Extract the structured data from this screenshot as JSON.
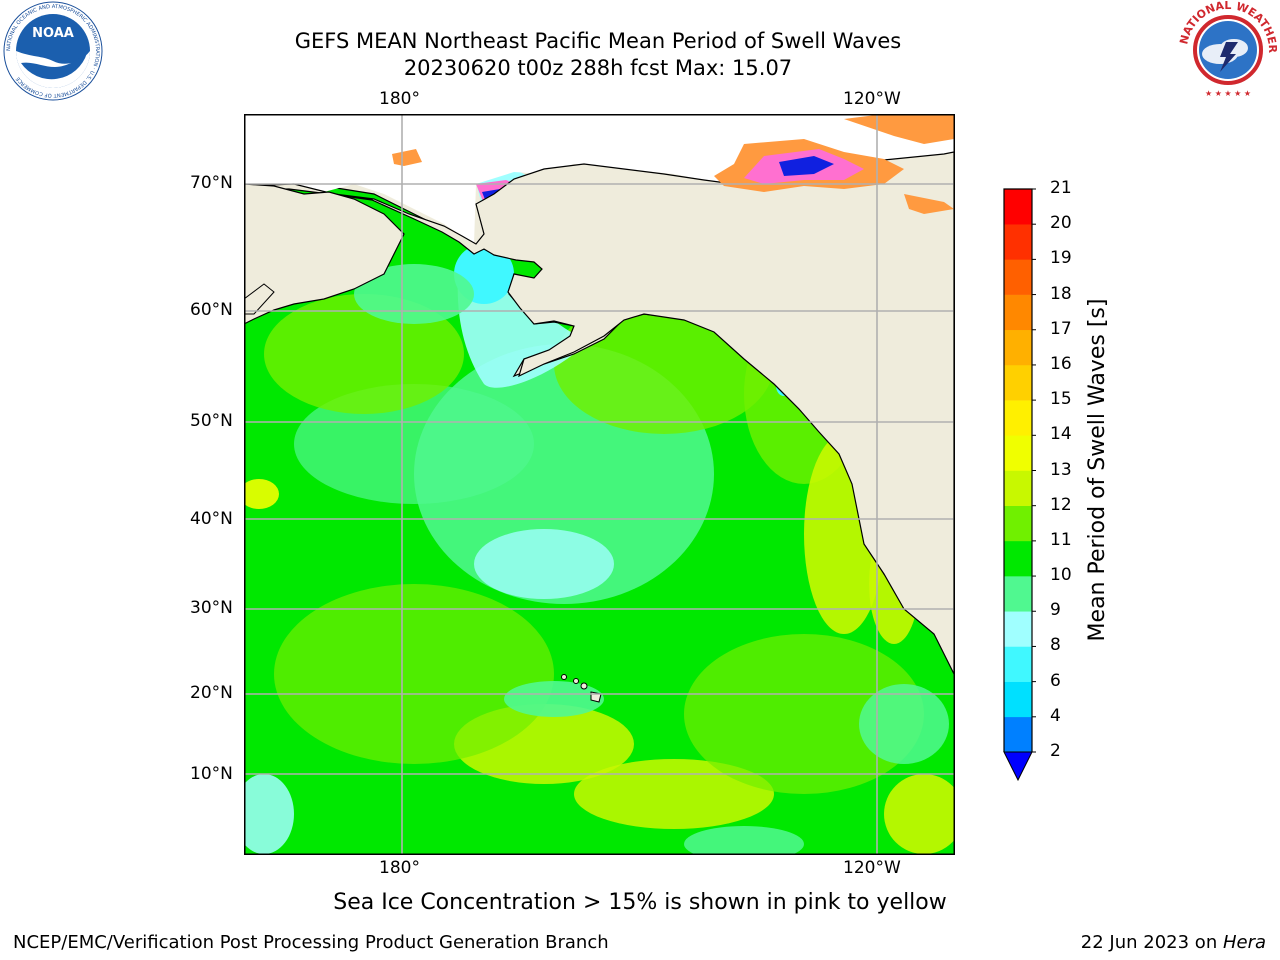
{
  "header": {
    "title_line1": "GEFS MEAN Northeast Pacific Mean Period of Swell Waves",
    "title_line2": "20230620 t00z 288h fcst   Max: 15.07"
  },
  "logos": {
    "left": "NOAA",
    "left_ring_text": "NATIONAL OCEANIC AND ATMOSPHERIC ADMINISTRATION · U.S. DEPARTMENT OF COMMERCE",
    "right_ring_text": "NATIONAL WEATHER SERVICE"
  },
  "map": {
    "lon_labels_top": [
      "180°",
      "120°W"
    ],
    "lon_labels_bottom": [
      "180°",
      "120°W"
    ],
    "lat_labels": [
      "70°N",
      "60°N",
      "50°N",
      "40°N",
      "30°N",
      "20°N",
      "10°N"
    ],
    "land_color": "#efecdc",
    "grid_color": "#b0b0b0"
  },
  "colorbar": {
    "label": "Mean Period of Swell Waves [s]",
    "ticks": [
      "2",
      "4",
      "6",
      "8",
      "9",
      "10",
      "11",
      "12",
      "13",
      "14",
      "15",
      "16",
      "17",
      "18",
      "19",
      "20",
      "21"
    ],
    "colors": [
      "#0080ff",
      "#00e0ff",
      "#40f8ff",
      "#a0ffff",
      "#50f890",
      "#00e800",
      "#70f000",
      "#c8f800",
      "#f0ff00",
      "#fff000",
      "#ffd000",
      "#ffb000",
      "#ff8800",
      "#ff6000",
      "#ff3000",
      "#ff0000"
    ],
    "under_color": "#0000ff"
  },
  "footnote": "Sea Ice Concentration > 15% is shown in pink to yellow",
  "footer": {
    "left": "NCEP/EMC/Verification Post Processing Product Generation Branch",
    "right_prefix": "22 Jun 2023 on ",
    "right_host": "Hera"
  }
}
